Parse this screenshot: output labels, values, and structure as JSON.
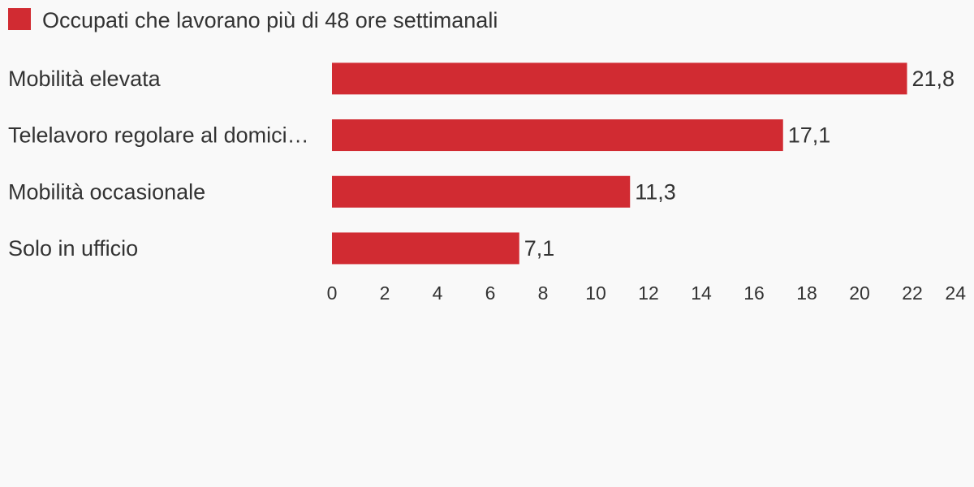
{
  "chart_data": {
    "type": "hbar",
    "categories": [
      "Mobilità elevata",
      "Telelavoro regolare al domici…",
      "Mobilità occasionale",
      "Solo in ufficio"
    ],
    "series": [
      {
        "name": "Occupati che lavorano più di 48 ore settimanali",
        "color": "#d12b32",
        "values": [
          21.8,
          17.1,
          11.3,
          7.1
        ],
        "value_labels": [
          "21,8",
          "17,1",
          "11,3",
          "7,1"
        ]
      }
    ],
    "xlim": [
      0,
      24
    ],
    "xticks": [
      0,
      2,
      4,
      6,
      8,
      10,
      12,
      14,
      16,
      18,
      20,
      22,
      24
    ],
    "grid": false,
    "legend": "top-left"
  }
}
